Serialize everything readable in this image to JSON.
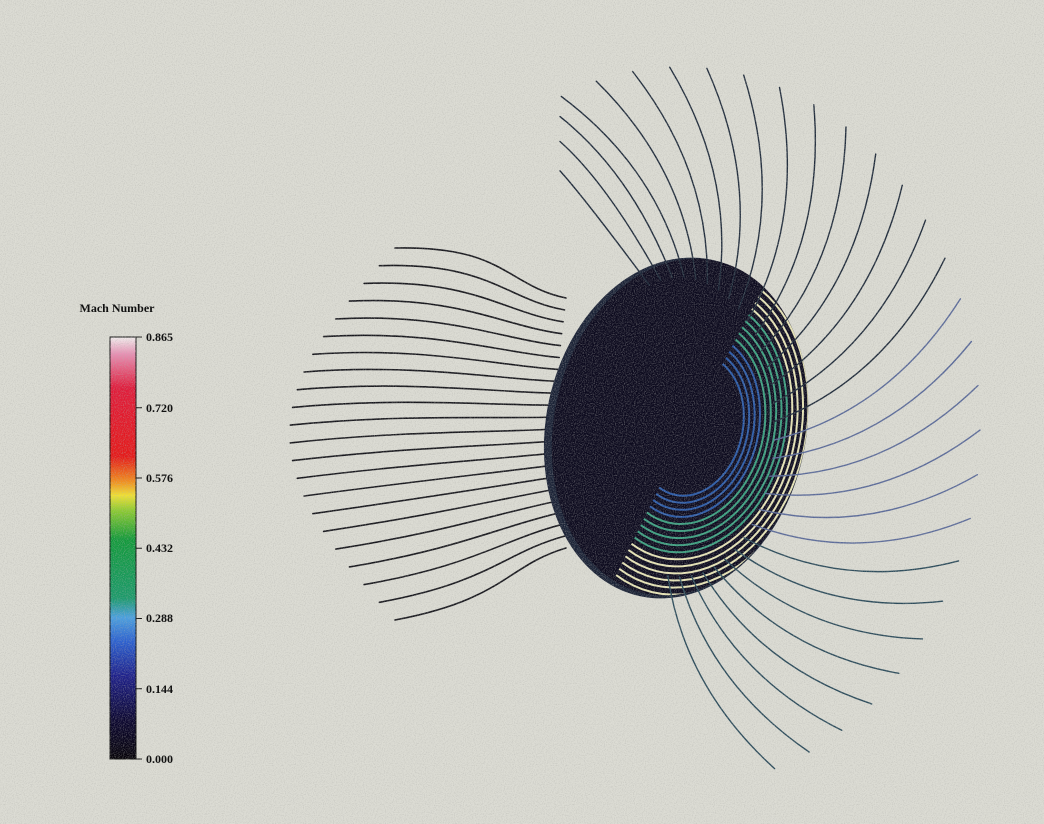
{
  "colorbar": {
    "title": "Mach Number",
    "min": 0.0,
    "max": 0.865,
    "ticks": [
      {
        "value": 0.865,
        "label": "0.865"
      },
      {
        "value": 0.72,
        "label": "0.720"
      },
      {
        "value": 0.576,
        "label": "0.576"
      },
      {
        "value": 0.432,
        "label": "0.432"
      },
      {
        "value": 0.288,
        "label": "0.288"
      },
      {
        "value": 0.144,
        "label": "0.144"
      },
      {
        "value": 0.0,
        "label": "0.000"
      }
    ],
    "colors": [
      {
        "value": 0.0,
        "color": "#050208"
      },
      {
        "value": 0.08,
        "color": "#0b0630"
      },
      {
        "value": 0.17,
        "color": "#1d1f8a"
      },
      {
        "value": 0.24,
        "color": "#2a5fd0"
      },
      {
        "value": 0.29,
        "color": "#4aa0e0"
      },
      {
        "value": 0.33,
        "color": "#1a9a6a"
      },
      {
        "value": 0.45,
        "color": "#119a3a"
      },
      {
        "value": 0.51,
        "color": "#8fcc30"
      },
      {
        "value": 0.54,
        "color": "#f1e232"
      },
      {
        "value": 0.57,
        "color": "#f28a1c"
      },
      {
        "value": 0.62,
        "color": "#e61818"
      },
      {
        "value": 0.76,
        "color": "#e11a3a"
      },
      {
        "value": 0.83,
        "color": "#e890b4"
      },
      {
        "value": 0.865,
        "color": "#f3f0ef"
      }
    ]
  },
  "colors": {
    "background": "#dcdcd4",
    "disk": "#0c0a1e",
    "streamline_dark": "#16161c",
    "ring_light": "#e9e6b8",
    "ring_green": "#3aa080",
    "ring_blue": "#2a5aa8"
  }
}
